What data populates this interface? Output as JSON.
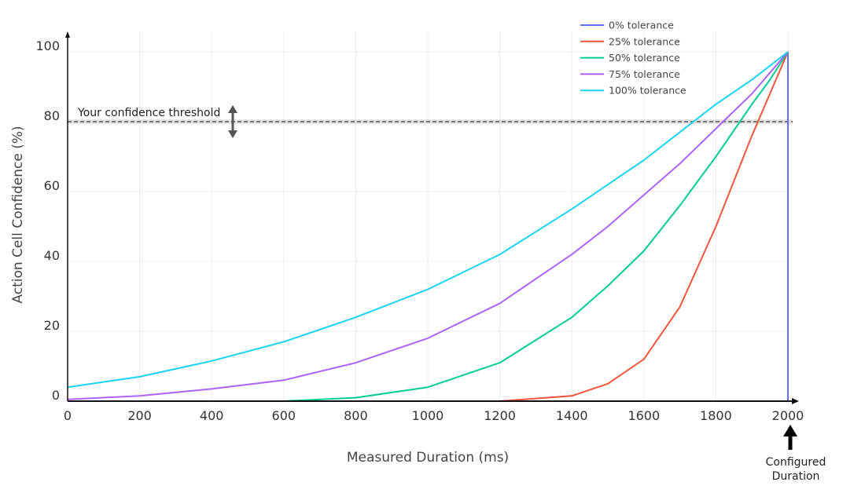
{
  "chart_data": {
    "type": "line",
    "xlabel": "Measured Duration (ms)",
    "ylabel": "Action Cell Confidence (%)",
    "xlim": [
      0,
      2000
    ],
    "ylim": [
      0,
      100
    ],
    "x_ticks": [
      0,
      200,
      400,
      600,
      800,
      1000,
      1200,
      1400,
      1600,
      1800,
      2000
    ],
    "y_ticks": [
      0,
      20,
      40,
      60,
      80,
      100
    ],
    "grid": true,
    "legend_position": "top-right",
    "threshold": {
      "label": "Your confidence threshold",
      "value": 80
    },
    "configured": {
      "label_line1": "Configured",
      "label_line2": "Duration",
      "x": 2000
    },
    "x": [
      0,
      200,
      400,
      600,
      800,
      1000,
      1200,
      1400,
      1500,
      1600,
      1700,
      1800,
      1900,
      1950,
      2000
    ],
    "series": [
      {
        "name": "0% tolerance",
        "color": "#636efa",
        "values": [
          0,
          0,
          0,
          0,
          0,
          0,
          0,
          0,
          0,
          0,
          0,
          0,
          0,
          0,
          100
        ]
      },
      {
        "name": "25% tolerance",
        "color": "#ef553b",
        "values": [
          0,
          0,
          0,
          0,
          0,
          0,
          0,
          1.5,
          5,
          12,
          27,
          50,
          76,
          88,
          100
        ]
      },
      {
        "name": "50% tolerance",
        "color": "#00cc96",
        "values": [
          0,
          0,
          0,
          0,
          1,
          4,
          11,
          24,
          33,
          43,
          56,
          70,
          85,
          92,
          100
        ]
      },
      {
        "name": "75% tolerance",
        "color": "#ab63fa",
        "values": [
          0.5,
          1.5,
          3.5,
          6,
          11,
          18,
          28,
          42,
          50,
          59,
          68,
          78,
          88,
          94,
          100
        ]
      },
      {
        "name": "100% tolerance",
        "color": "#19d3f3",
        "values": [
          4,
          7,
          11.5,
          17,
          24,
          32,
          42,
          55,
          62,
          69,
          77,
          85,
          92,
          96,
          100
        ]
      }
    ]
  }
}
